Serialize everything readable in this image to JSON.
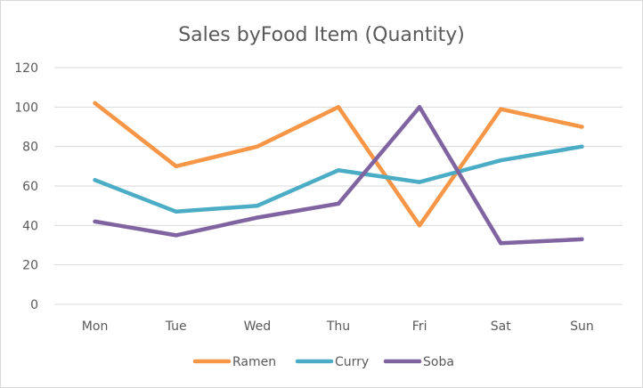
{
  "chart_data": {
    "type": "line",
    "title": "Sales byFood Item (Quantity)",
    "xlabel": "",
    "ylabel": "",
    "categories": [
      "Mon",
      "Tue",
      "Wed",
      "Thu",
      "Fri",
      "Sat",
      "Sun"
    ],
    "ylim": [
      0,
      120
    ],
    "yticks": [
      0,
      20,
      40,
      60,
      80,
      100,
      120
    ],
    "ytick_labels": [
      "0",
      "20",
      "40",
      "60",
      "80",
      "100",
      "120"
    ],
    "grid": true,
    "legend_position": "bottom",
    "series": [
      {
        "name": "Ramen",
        "color": "#F79646",
        "values": [
          102,
          70,
          80,
          100,
          40,
          99,
          90
        ]
      },
      {
        "name": "Curry",
        "color": "#4BACC6",
        "values": [
          63,
          47,
          50,
          68,
          62,
          73,
          80
        ]
      },
      {
        "name": "Soba",
        "color": "#8064A2",
        "values": [
          42,
          35,
          44,
          51,
          100,
          31,
          33
        ]
      }
    ]
  }
}
